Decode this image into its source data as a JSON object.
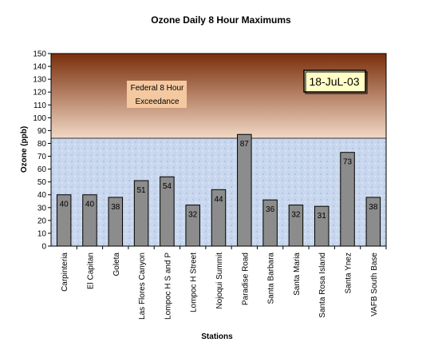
{
  "chart_data": {
    "type": "bar",
    "title": "Ozone Daily 8 Hour Maximums",
    "xlabel": "Stations",
    "ylabel": "Ozone (ppb)",
    "ylim": [
      0,
      150
    ],
    "ytick_step": 10,
    "categories": [
      "Carpinteria",
      "El Capitan",
      "Goleta",
      "Las Flores Canyon",
      "Lompoc H S and P",
      "Lompoc H Street",
      "Nojoqui Summit",
      "Paradise Road",
      "Santa Barbara",
      "Santa Maria",
      "Santa Rosa Island",
      "Santa Ynez",
      "VAFB South Base"
    ],
    "values": [
      40,
      40,
      38,
      51,
      54,
      32,
      44,
      87,
      36,
      32,
      31,
      73,
      38
    ],
    "data_labels": [
      "40",
      "40",
      "38",
      "51",
      "54",
      "32",
      "44",
      "87",
      "36",
      "32",
      "31",
      "73",
      "38"
    ],
    "exceedance": {
      "threshold": 84,
      "label_line1": "Federal 8 Hour",
      "label_line2": "Exceedance"
    },
    "date_box": "18-JuL-03",
    "colors": {
      "bar_fill": "#8c8c8c",
      "exceedance_top": "#7a2f0c",
      "exceedance_bottom": "#f2d8c4",
      "lower_region": "#c9d8ee",
      "date_box_fill": "#ffffc6",
      "label_box_fill": "#f5c9a0"
    }
  }
}
